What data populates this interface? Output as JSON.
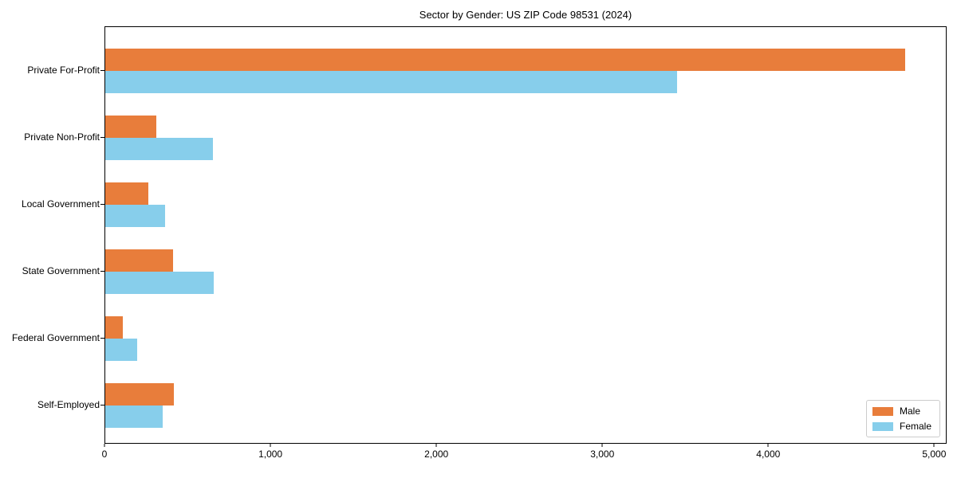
{
  "chart_data": {
    "type": "bar",
    "orientation": "horizontal",
    "title": "Sector by Gender: US ZIP Code 98531 (2024)",
    "xlabel": "",
    "ylabel": "",
    "categories": [
      "Private For-Profit",
      "Private Non-Profit",
      "Local Government",
      "State Government",
      "Federal Government",
      "Self-Employed"
    ],
    "series": [
      {
        "name": "Male",
        "color": "#E87D3B",
        "values": [
          4830,
          310,
          260,
          410,
          105,
          415
        ]
      },
      {
        "name": "Female",
        "color": "#87CEEB",
        "values": [
          3450,
          650,
          360,
          655,
          195,
          345
        ]
      }
    ],
    "xlim": [
      0,
      5075
    ],
    "xticks": [
      0,
      1000,
      2000,
      3000,
      4000,
      5000
    ],
    "xtick_labels": [
      "0",
      "1,000",
      "2,000",
      "3,000",
      "4,000",
      "5,000"
    ],
    "grid": false,
    "legend_position": "lower right",
    "background_color": "#ffffff",
    "spine_color": "#000000"
  }
}
